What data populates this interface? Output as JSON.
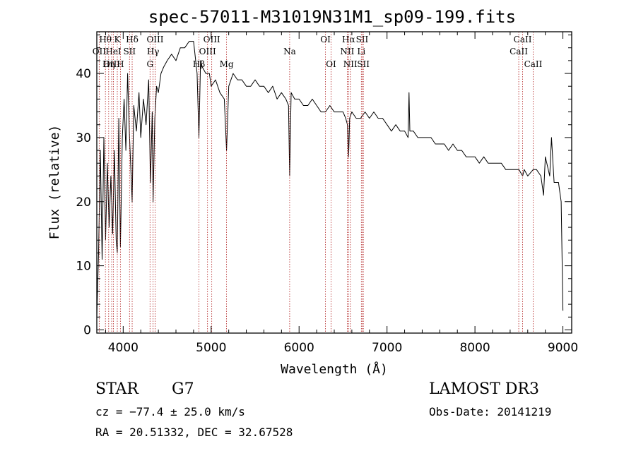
{
  "chart_data": {
    "type": "line",
    "title": "spec-57011-M31019N31M1_sp09-199.fits",
    "xlabel": "Wavelength (Å)",
    "ylabel": "Flux (relative)",
    "xlim": [
      3700,
      9100
    ],
    "ylim": [
      -0.5,
      46.5
    ],
    "x_ticks": [
      4000,
      5000,
      6000,
      7000,
      8000,
      9000
    ],
    "y_ticks": [
      0,
      10,
      20,
      30,
      40
    ],
    "x_minor_step": 200,
    "y_minor_step": 2,
    "colors": {
      "spectrum": "#000000",
      "line_marker": "#b22222",
      "frame": "#000000"
    },
    "series": [
      {
        "name": "spectrum",
        "x": [
          3700,
          3720,
          3740,
          3760,
          3780,
          3800,
          3820,
          3840,
          3860,
          3880,
          3900,
          3920,
          3933,
          3950,
          3968,
          3990,
          4010,
          4030,
          4050,
          4070,
          4102,
          4120,
          4150,
          4180,
          4200,
          4230,
          4260,
          4290,
          4310,
          4330,
          4340,
          4360,
          4380,
          4400,
          4430,
          4460,
          4500,
          4550,
          4600,
          4650,
          4700,
          4750,
          4800,
          4840,
          4861,
          4880,
          4900,
          4940,
          4980,
          5000,
          5050,
          5100,
          5150,
          5175,
          5200,
          5250,
          5300,
          5350,
          5400,
          5450,
          5500,
          5550,
          5600,
          5650,
          5700,
          5750,
          5800,
          5850,
          5880,
          5893,
          5910,
          5950,
          6000,
          6050,
          6100,
          6150,
          6200,
          6250,
          6300,
          6350,
          6400,
          6450,
          6500,
          6530,
          6550,
          6563,
          6575,
          6600,
          6650,
          6700,
          6750,
          6800,
          6850,
          6900,
          6950,
          7000,
          7050,
          7100,
          7150,
          7200,
          7240,
          7250,
          7260,
          7300,
          7350,
          7400,
          7450,
          7500,
          7550,
          7600,
          7650,
          7700,
          7750,
          7800,
          7850,
          7900,
          7950,
          8000,
          8050,
          8100,
          8150,
          8200,
          8250,
          8300,
          8350,
          8400,
          8450,
          8500,
          8542,
          8560,
          8600,
          8662,
          8700,
          8750,
          8780,
          8800,
          8850,
          8870,
          8900,
          8950,
          8980,
          9000
        ],
        "values": [
          2,
          12,
          28,
          11,
          30,
          14,
          26,
          16,
          24,
          15,
          28,
          14,
          12,
          33,
          13,
          30,
          36,
          28,
          40,
          31,
          20,
          35,
          31,
          37,
          30,
          36,
          32,
          39,
          23,
          34,
          20,
          33,
          38,
          37,
          40,
          41,
          42,
          43,
          42,
          44,
          44,
          45,
          45,
          40,
          30,
          42,
          41,
          40,
          40,
          38,
          39,
          37,
          36,
          28,
          38,
          40,
          39,
          39,
          38,
          38,
          39,
          38,
          38,
          37,
          38,
          36,
          37,
          36,
          35,
          24,
          37,
          36,
          36,
          35,
          35,
          36,
          35,
          34,
          34,
          35,
          34,
          34,
          34,
          33,
          32,
          27,
          33,
          34,
          33,
          33,
          34,
          33,
          34,
          33,
          33,
          32,
          31,
          32,
          31,
          31,
          30,
          37,
          31,
          31,
          30,
          30,
          30,
          30,
          29,
          29,
          29,
          28,
          29,
          28,
          28,
          27,
          27,
          27,
          26,
          27,
          26,
          26,
          26,
          26,
          25,
          25,
          25,
          25,
          24,
          25,
          24,
          25,
          25,
          24,
          21,
          27,
          24,
          30,
          23,
          23,
          20,
          3
        ]
      }
    ],
    "line_markers": [
      {
        "label": "Hθ",
        "wave": 3798,
        "row": 0
      },
      {
        "label": "K",
        "wave": 3933,
        "row": 0
      },
      {
        "label": "Hδ",
        "wave": 4102,
        "row": 0
      },
      {
        "label": "OIII",
        "wave": 4363,
        "row": 0
      },
      {
        "label": "OIII",
        "wave": 5007,
        "row": 0
      },
      {
        "label": "OI",
        "wave": 6300,
        "row": 0
      },
      {
        "label": "Hα",
        "wave": 6563,
        "row": 0
      },
      {
        "label": "SII",
        "wave": 6717,
        "row": 0
      },
      {
        "label": "CaII",
        "wave": 8542,
        "row": 0
      },
      {
        "label": "OII",
        "wave": 3727,
        "row": 1
      },
      {
        "label": "HeI",
        "wave": 3889,
        "row": 1
      },
      {
        "label": "SII",
        "wave": 4072,
        "row": 1
      },
      {
        "label": "Hγ",
        "wave": 4340,
        "row": 1
      },
      {
        "label": "OIII",
        "wave": 4959,
        "row": 1
      },
      {
        "label": "NII",
        "wave": 6548,
        "row": 1
      },
      {
        "label": "Li",
        "wave": 6708,
        "row": 1
      },
      {
        "label": "CaII",
        "wave": 8498,
        "row": 1
      },
      {
        "label": "OIII",
        "wave": 3869,
        "row": 2
      },
      {
        "label": "Hη",
        "wave": 3835,
        "row": 2
      },
      {
        "label": "H",
        "wave": 3968,
        "row": 2
      },
      {
        "label": "G",
        "wave": 4305,
        "row": 2
      },
      {
        "label": "Hβ",
        "wave": 4861,
        "row": 2
      },
      {
        "label": "Mg",
        "wave": 5175,
        "row": 2
      },
      {
        "label": "Na",
        "wave": 5893,
        "row": 1
      },
      {
        "label": "OI",
        "wave": 6364,
        "row": 2
      },
      {
        "label": "NII",
        "wave": 6583,
        "row": 2
      },
      {
        "label": "SII",
        "wave": 6731,
        "row": 2
      },
      {
        "label": "CaII",
        "wave": 8662,
        "row": 2
      }
    ]
  },
  "info": {
    "object_class": "STAR",
    "subclass": "G7",
    "survey": "LAMOST DR3",
    "redshift": "cz = −77.4 ± 25.0 km/s",
    "obs_date": "Obs-Date: 20141219",
    "coords": "RA =  20.51332, DEC =  32.67528"
  }
}
